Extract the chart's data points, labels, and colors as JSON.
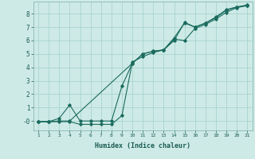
{
  "xlabel": "Humidex (Indice chaleur)",
  "ylabel": "",
  "bg_color": "#ceeae6",
  "grid_color": "#a8d4d0",
  "line_color": "#1a6b5e",
  "xlim": [
    0.5,
    21.5
  ],
  "ylim": [
    -0.7,
    8.9
  ],
  "xticks": [
    1,
    2,
    3,
    4,
    5,
    6,
    7,
    8,
    9,
    10,
    11,
    12,
    13,
    14,
    15,
    16,
    17,
    18,
    19,
    20,
    21
  ],
  "yticks": [
    0,
    1,
    2,
    3,
    4,
    5,
    6,
    7,
    8
  ],
  "ytick_labels": [
    "-0",
    "1",
    "2",
    "3",
    "4",
    "5",
    "6",
    "7",
    "8"
  ],
  "line1_x": [
    1,
    2,
    3,
    4,
    5,
    6,
    7,
    8,
    9,
    10,
    11,
    12,
    13,
    14,
    15,
    16,
    17,
    18,
    19,
    20,
    21
  ],
  "line1_y": [
    -0.05,
    -0.05,
    -0.05,
    -0.05,
    -0.25,
    -0.25,
    -0.25,
    -0.25,
    0.4,
    4.4,
    4.8,
    5.1,
    5.3,
    6.0,
    7.35,
    7.0,
    7.3,
    7.75,
    8.3,
    8.5,
    8.6
  ],
  "line2_x": [
    1,
    2,
    3,
    4,
    5,
    6,
    7,
    8,
    9,
    10,
    11,
    12,
    13,
    14,
    15,
    16,
    17,
    18,
    19,
    20,
    21
  ],
  "line2_y": [
    -0.05,
    -0.05,
    0.2,
    1.2,
    0.0,
    0.0,
    0.0,
    0.0,
    2.6,
    4.3,
    5.0,
    5.2,
    5.3,
    6.1,
    6.0,
    6.9,
    7.2,
    7.6,
    8.1,
    8.45,
    8.6
  ],
  "line3_x": [
    1,
    2,
    3,
    4,
    10,
    11,
    12,
    13,
    14,
    15,
    16,
    17,
    18,
    19,
    20,
    21
  ],
  "line3_y": [
    -0.05,
    -0.05,
    0.0,
    0.0,
    4.3,
    5.0,
    5.2,
    5.3,
    6.2,
    7.3,
    7.0,
    7.3,
    7.7,
    8.25,
    8.5,
    8.65
  ]
}
